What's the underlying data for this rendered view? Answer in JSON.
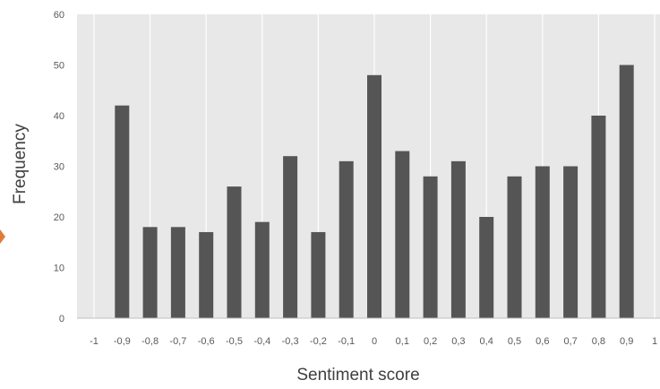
{
  "chart_data": {
    "type": "bar",
    "xlabel": "Sentiment score",
    "ylabel": "Frequency",
    "ylim": [
      0,
      60
    ],
    "yticks": [
      "0",
      "10",
      "20",
      "30",
      "40",
      "50",
      "60"
    ],
    "xticks": [
      "-1",
      "-0,9",
      "-0,8",
      "-0,7",
      "-0,6",
      "-0,5",
      "-0,4",
      "-0,3",
      "-0,2",
      "-0,1",
      "0",
      "0,1",
      "0,2",
      "0,3",
      "0,4",
      "0,5",
      "0,6",
      "0,7",
      "0,8",
      "0,9",
      "1"
    ],
    "categories": [
      "-0,9",
      "-0,8",
      "-0,7",
      "-0,6",
      "-0,5",
      "-0,4",
      "-0,3",
      "-0,2",
      "-0,1",
      "0",
      "0,1",
      "0,2",
      "0,3",
      "0,4",
      "0,5",
      "0,6",
      "0,7",
      "0,8",
      "0,9"
    ],
    "values": [
      42,
      18,
      18,
      17,
      26,
      19,
      32,
      17,
      31,
      48,
      33,
      28,
      31,
      20,
      28,
      30,
      30,
      40,
      50
    ],
    "grid": true,
    "colors": {
      "bar": "#555555",
      "plot_bg": "#e8e8e8",
      "grid": "#ffffff"
    }
  }
}
